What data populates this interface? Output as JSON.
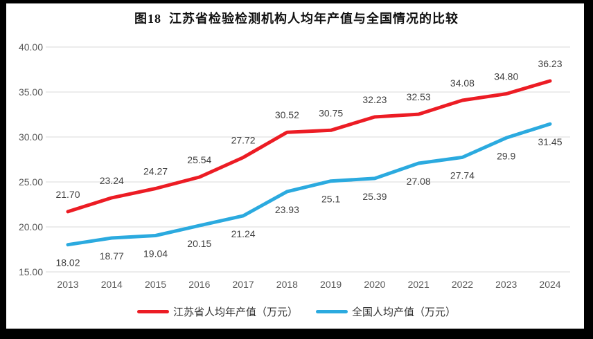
{
  "title": "图18  江苏省检验检测机构人均年产值与全国情况的比较",
  "colors": {
    "jiangsu_line": "#EC1C24",
    "national_line": "#2BAADF",
    "gridline": "#D9D9D9",
    "axis_text": "#595959",
    "data_label_text": "#404040",
    "title_text": "#111111",
    "legend_text": "#333333",
    "background": "#FFFFFF",
    "frame": "#000000"
  },
  "chart_data": {
    "type": "line",
    "title": "图18  江苏省检验检测机构人均年产值与全国情况的比较",
    "categories": [
      "2013",
      "2014",
      "2015",
      "2016",
      "2017",
      "2018",
      "2019",
      "2020",
      "2021",
      "2022",
      "2023",
      "2024"
    ],
    "series": [
      {
        "name": "江苏省人均年产值（万元）",
        "color_key": "jiangsu_line",
        "values": [
          21.7,
          23.24,
          24.27,
          25.54,
          27.72,
          30.52,
          30.75,
          32.23,
          32.53,
          34.08,
          34.8,
          36.23
        ],
        "labels": [
          "21.70",
          "23.24",
          "24.27",
          "25.54",
          "27.72",
          "30.52",
          "30.75",
          "32.23",
          "32.53",
          "34.08",
          "34.80",
          "36.23"
        ],
        "label_position": "above"
      },
      {
        "name": "全国人均产值（万元）",
        "color_key": "national_line",
        "values": [
          18.02,
          18.77,
          19.04,
          20.15,
          21.24,
          23.93,
          25.1,
          25.39,
          27.08,
          27.74,
          29.9,
          31.45
        ],
        "labels": [
          "18.02",
          "18.77",
          "19.04",
          "20.15",
          "21.24",
          "23.93",
          "25.1",
          "25.39",
          "27.08",
          "27.74",
          "29.9",
          "31.45"
        ],
        "label_position": "below"
      }
    ],
    "xlabel": "",
    "ylabel": "",
    "ylim": [
      15,
      40
    ],
    "ytick_values": [
      40,
      35,
      30,
      25,
      20,
      15
    ],
    "ytick_labels": [
      "40.00",
      "35.00",
      "30.00",
      "25.00",
      "20.00",
      "15.00"
    ],
    "grid": true,
    "legend_position": "bottom"
  }
}
